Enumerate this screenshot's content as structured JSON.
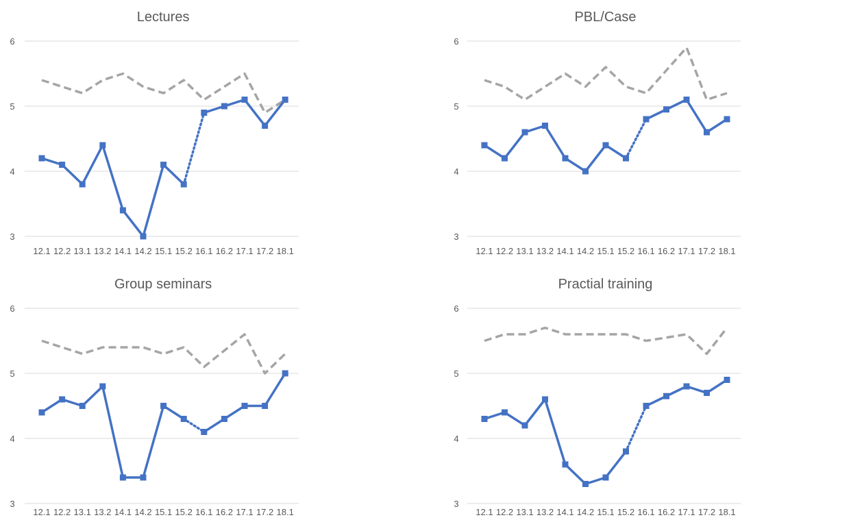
{
  "chart_data": [
    {
      "type": "line",
      "title": "Lectures",
      "categories": [
        "12.1",
        "12.2",
        "13.1",
        "13.2",
        "14.1",
        "14.2",
        "15.1",
        "15.2",
        "16.1",
        "16.2",
        "17.1",
        "17.2",
        "18.1"
      ],
      "ylim": [
        3,
        6
      ],
      "yticks": [
        "3",
        "4",
        "5",
        "6"
      ],
      "grid": true,
      "series": [
        {
          "color": "#4472c4",
          "style": "solid-with-square-markers",
          "break_dotted_between": [
            7,
            8
          ],
          "values": [
            4.2,
            4.1,
            3.8,
            4.4,
            3.4,
            3.0,
            4.1,
            3.8,
            4.9,
            5.0,
            5.1,
            4.7,
            5.1
          ]
        },
        {
          "color": "#a5a5a5",
          "style": "dashed",
          "values": [
            5.4,
            5.3,
            5.2,
            5.4,
            5.5,
            5.3,
            5.2,
            5.4,
            5.1,
            5.3,
            5.5,
            4.9,
            5.1
          ]
        }
      ]
    },
    {
      "type": "line",
      "title": "PBL/Case",
      "categories": [
        "12.1",
        "12.2",
        "13.1",
        "13.2",
        "14.1",
        "14.2",
        "15.1",
        "15.2",
        "16.1",
        "16.2",
        "17.1",
        "17.2",
        "18.1"
      ],
      "ylim": [
        3,
        6
      ],
      "yticks": [
        "3",
        "4",
        "5",
        "6"
      ],
      "grid": true,
      "series": [
        {
          "color": "#4472c4",
          "style": "solid-with-square-markers",
          "break_dotted_between": [
            7,
            8
          ],
          "values": [
            4.4,
            4.2,
            4.6,
            4.7,
            4.2,
            4.0,
            4.4,
            4.2,
            4.8,
            4.95,
            5.1,
            4.6,
            4.8
          ]
        },
        {
          "color": "#a5a5a5",
          "style": "dashed",
          "values": [
            5.4,
            5.3,
            5.1,
            5.3,
            5.5,
            5.3,
            5.6,
            5.3,
            5.2,
            5.55,
            5.9,
            5.1,
            5.2
          ]
        }
      ]
    },
    {
      "type": "line",
      "title": "Group seminars",
      "categories": [
        "12.1",
        "12.2",
        "13.1",
        "13.2",
        "14.1",
        "14.2",
        "15.1",
        "15.2",
        "16.1",
        "16.2",
        "17.1",
        "17.2",
        "18.1"
      ],
      "ylim": [
        3,
        6
      ],
      "yticks": [
        "3",
        "4",
        "5",
        "6"
      ],
      "grid": true,
      "series": [
        {
          "color": "#4472c4",
          "style": "solid-with-square-markers",
          "break_dotted_between": [
            7,
            8
          ],
          "values": [
            4.4,
            4.6,
            4.5,
            4.8,
            3.4,
            3.4,
            4.5,
            4.3,
            4.1,
            4.3,
            4.5,
            4.5,
            5.0
          ]
        },
        {
          "color": "#a5a5a5",
          "style": "dashed",
          "values": [
            5.5,
            5.4,
            5.3,
            5.4,
            5.4,
            5.4,
            5.3,
            5.4,
            5.1,
            5.35,
            5.6,
            5.0,
            5.3
          ]
        }
      ]
    },
    {
      "type": "line",
      "title": "Practial training",
      "categories": [
        "12.1",
        "12.2",
        "13.1",
        "13.2",
        "14.1",
        "14.2",
        "15.1",
        "15.2",
        "16.1",
        "16.2",
        "17.1",
        "17.2",
        "18.1"
      ],
      "ylim": [
        3,
        6
      ],
      "yticks": [
        "3",
        "4",
        "5",
        "6"
      ],
      "grid": true,
      "series": [
        {
          "color": "#4472c4",
          "style": "solid-with-square-markers",
          "break_dotted_between": [
            7,
            8
          ],
          "values": [
            4.3,
            4.4,
            4.2,
            4.6,
            3.6,
            3.3,
            3.4,
            3.8,
            4.5,
            4.65,
            4.8,
            4.7,
            4.9
          ]
        },
        {
          "color": "#a5a5a5",
          "style": "dashed",
          "values": [
            5.5,
            5.6,
            5.6,
            5.7,
            5.6,
            5.6,
            5.6,
            5.6,
            5.5,
            5.55,
            5.6,
            5.3,
            5.7
          ]
        }
      ]
    }
  ]
}
